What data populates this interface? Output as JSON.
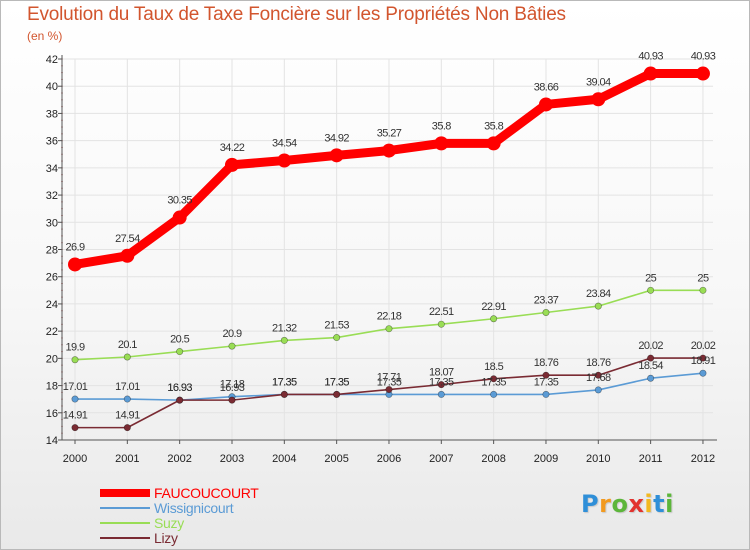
{
  "title": "Evolution du Taux de Taxe Foncière sur les Propriétés Non Bâties",
  "unit_label": "(en %)",
  "chart_data": {
    "type": "line",
    "title": "Evolution du Taux de Taxe Foncière sur les Propriétés Non Bâties",
    "ylabel": "(en %)",
    "xlabel": "",
    "ylim": [
      14,
      42
    ],
    "yticks": [
      14,
      16,
      18,
      20,
      22,
      24,
      26,
      28,
      30,
      32,
      34,
      36,
      38,
      40,
      42
    ],
    "x": [
      "2000",
      "2001",
      "2002",
      "2003",
      "2004",
      "2005",
      "2006",
      "2007",
      "2008",
      "2009",
      "2010",
      "2011",
      "2012"
    ],
    "series": [
      {
        "name": "FAUCOUCOURT",
        "color": "#ff0000",
        "values": [
          26.9,
          27.54,
          30.35,
          34.22,
          34.54,
          34.92,
          35.27,
          35.8,
          35.8,
          38.66,
          39.04,
          40.93,
          40.93
        ],
        "labels": [
          "26.9",
          "27.54",
          "30.35",
          "34.22",
          "34.54",
          "34.92",
          "35.27",
          "35.8",
          "35.8",
          "38.66",
          "39.04",
          "40.93",
          "40.93"
        ]
      },
      {
        "name": "Wissignicourt",
        "color": "#5b9bd5",
        "values": [
          17.01,
          17.01,
          16.93,
          17.18,
          17.35,
          17.35,
          17.35,
          17.35,
          17.35,
          17.35,
          17.68,
          18.54,
          18.91
        ],
        "labels": [
          "17.01",
          "17.01",
          "16.93",
          "17.18",
          "17.35",
          "17.35",
          "17.35",
          "17.35",
          "17.35",
          "17.35",
          "17.68",
          "18.54",
          "18.91"
        ]
      },
      {
        "name": "Suzy",
        "color": "#99dd55",
        "values": [
          19.9,
          20.1,
          20.5,
          20.9,
          21.32,
          21.53,
          22.18,
          22.51,
          22.91,
          23.37,
          23.84,
          25,
          25
        ],
        "labels": [
          "19.9",
          "20.1",
          "20.5",
          "20.9",
          "21.32",
          "21.53",
          "22.18",
          "22.51",
          "22.91",
          "23.37",
          "23.84",
          "25",
          "25"
        ]
      },
      {
        "name": "Lizy",
        "color": "#7a2b33",
        "values": [
          14.91,
          14.91,
          16.93,
          16.93,
          17.35,
          17.35,
          17.71,
          18.07,
          18.5,
          18.76,
          18.76,
          20.02,
          20.02
        ],
        "labels": [
          "14.91",
          "14.91",
          "16.93",
          "16.93",
          "17.35",
          "17.35",
          "17.71",
          "18.07",
          "18.5",
          "18.76",
          "18.76",
          "20.02",
          "20.02"
        ]
      }
    ],
    "legend_position": "bottom-left"
  },
  "logo": {
    "letters": [
      "P",
      "r",
      "o",
      "x",
      "i",
      "t",
      "i"
    ],
    "colors": [
      "#2f8fd8",
      "#f29a1f",
      "#5cb63a",
      "#e2332f",
      "#f2b81f",
      "#2f8fd8",
      "#5cb63a"
    ]
  }
}
